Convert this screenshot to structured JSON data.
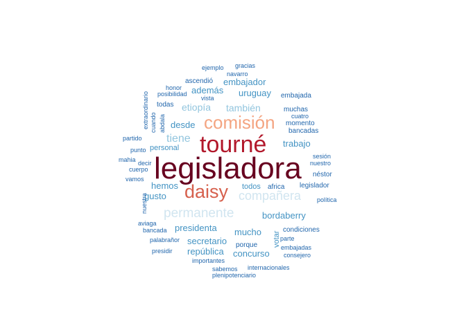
{
  "chart_data": {
    "type": "wordcloud",
    "palette": {
      "darkest_red": "#67001f",
      "dark_red": "#b2182b",
      "salmon": "#d6604d",
      "peach": "#f4a582",
      "pale_blue": "#d1e5f0",
      "light_blue": "#92c5de",
      "mid_blue": "#4393c3",
      "dark_blue": "#2166ac"
    },
    "words": [
      {
        "text": "legisladora",
        "weight": 44,
        "color": "#67001f"
      },
      {
        "text": "tourné",
        "weight": 34,
        "color": "#b2182b"
      },
      {
        "text": "daisy",
        "weight": 27,
        "color": "#d6604d"
      },
      {
        "text": "comisión",
        "weight": 26,
        "color": "#f4a582"
      },
      {
        "text": "permanente",
        "weight": 19,
        "color": "#d1e5f0"
      },
      {
        "text": "compañera",
        "weight": 18,
        "color": "#d1e5f0"
      },
      {
        "text": "tiene",
        "weight": 16,
        "color": "#92c5de"
      },
      {
        "text": "etiopía",
        "weight": 14,
        "color": "#92c5de"
      },
      {
        "text": "también",
        "weight": 14,
        "color": "#92c5de"
      },
      {
        "text": "embajador",
        "weight": 13,
        "color": "#4393c3"
      },
      {
        "text": "además",
        "weight": 13,
        "color": "#4393c3"
      },
      {
        "text": "uruguay",
        "weight": 13,
        "color": "#4393c3"
      },
      {
        "text": "desde",
        "weight": 13,
        "color": "#4393c3"
      },
      {
        "text": "trabajo",
        "weight": 13,
        "color": "#4393c3"
      },
      {
        "text": "hemos",
        "weight": 13,
        "color": "#4393c3"
      },
      {
        "text": "gusto",
        "weight": 13,
        "color": "#4393c3"
      },
      {
        "text": "bordaberry",
        "weight": 13,
        "color": "#4393c3"
      },
      {
        "text": "presidenta",
        "weight": 13,
        "color": "#4393c3"
      },
      {
        "text": "mucho",
        "weight": 13,
        "color": "#4393c3"
      },
      {
        "text": "secretario",
        "weight": 13,
        "color": "#4393c3"
      },
      {
        "text": "república",
        "weight": 13,
        "color": "#4393c3"
      },
      {
        "text": "concurso",
        "weight": 13,
        "color": "#4393c3"
      },
      {
        "text": "votar",
        "weight": 11,
        "color": "#4393c3"
      },
      {
        "text": "personal",
        "weight": 11,
        "color": "#4393c3"
      },
      {
        "text": "todos",
        "weight": 11,
        "color": "#4393c3"
      },
      {
        "text": "ascendió",
        "weight": 10,
        "color": "#2166ac"
      },
      {
        "text": "embajada",
        "weight": 10,
        "color": "#2166ac"
      },
      {
        "text": "todas",
        "weight": 10,
        "color": "#2166ac"
      },
      {
        "text": "muchas",
        "weight": 10,
        "color": "#2166ac"
      },
      {
        "text": "momento",
        "weight": 10,
        "color": "#2166ac"
      },
      {
        "text": "bancadas",
        "weight": 10,
        "color": "#2166ac"
      },
      {
        "text": "néstor",
        "weight": 10,
        "color": "#2166ac"
      },
      {
        "text": "legislador",
        "weight": 10,
        "color": "#2166ac"
      },
      {
        "text": "africa",
        "weight": 10,
        "color": "#2166ac"
      },
      {
        "text": "condiciones",
        "weight": 10,
        "color": "#2166ac"
      },
      {
        "text": "porque",
        "weight": 10,
        "color": "#2166ac"
      },
      {
        "text": "ejemplo",
        "weight": 9,
        "color": "#2166ac"
      },
      {
        "text": "gracias",
        "weight": 9,
        "color": "#2166ac"
      },
      {
        "text": "navarro",
        "weight": 9,
        "color": "#2166ac"
      },
      {
        "text": "honor",
        "weight": 9,
        "color": "#2166ac"
      },
      {
        "text": "posibilidad",
        "weight": 9,
        "color": "#2166ac"
      },
      {
        "text": "vista",
        "weight": 9,
        "color": "#2166ac"
      },
      {
        "text": "extraordinario",
        "weight": 9,
        "color": "#2166ac"
      },
      {
        "text": "cuando",
        "weight": 9,
        "color": "#2166ac"
      },
      {
        "text": "abdala",
        "weight": 9,
        "color": "#2166ac"
      },
      {
        "text": "cuatro",
        "weight": 9,
        "color": "#2166ac"
      },
      {
        "text": "partido",
        "weight": 9,
        "color": "#2166ac"
      },
      {
        "text": "punto",
        "weight": 9,
        "color": "#2166ac"
      },
      {
        "text": "mahia",
        "weight": 9,
        "color": "#2166ac"
      },
      {
        "text": "decir",
        "weight": 9,
        "color": "#2166ac"
      },
      {
        "text": "cuerpo",
        "weight": 9,
        "color": "#2166ac"
      },
      {
        "text": "vamos",
        "weight": 9,
        "color": "#2166ac"
      },
      {
        "text": "sesión",
        "weight": 9,
        "color": "#2166ac"
      },
      {
        "text": "nuestro",
        "weight": 9,
        "color": "#2166ac"
      },
      {
        "text": "nuestra",
        "weight": 9,
        "color": "#2166ac"
      },
      {
        "text": "política",
        "weight": 9,
        "color": "#2166ac"
      },
      {
        "text": "aviaga",
        "weight": 9,
        "color": "#2166ac"
      },
      {
        "text": "bancada",
        "weight": 9,
        "color": "#2166ac"
      },
      {
        "text": "palabrañor",
        "weight": 9,
        "color": "#2166ac"
      },
      {
        "text": "parte",
        "weight": 9,
        "color": "#2166ac"
      },
      {
        "text": "embajadas",
        "weight": 9,
        "color": "#2166ac"
      },
      {
        "text": "presidir",
        "weight": 9,
        "color": "#2166ac"
      },
      {
        "text": "consejero",
        "weight": 9,
        "color": "#2166ac"
      },
      {
        "text": "importantes",
        "weight": 9,
        "color": "#2166ac"
      },
      {
        "text": "sabemos",
        "weight": 9,
        "color": "#2166ac"
      },
      {
        "text": "internacionales",
        "weight": 9,
        "color": "#2166ac"
      },
      {
        "text": "plenipotenciario",
        "weight": 9,
        "color": "#2166ac"
      }
    ]
  }
}
